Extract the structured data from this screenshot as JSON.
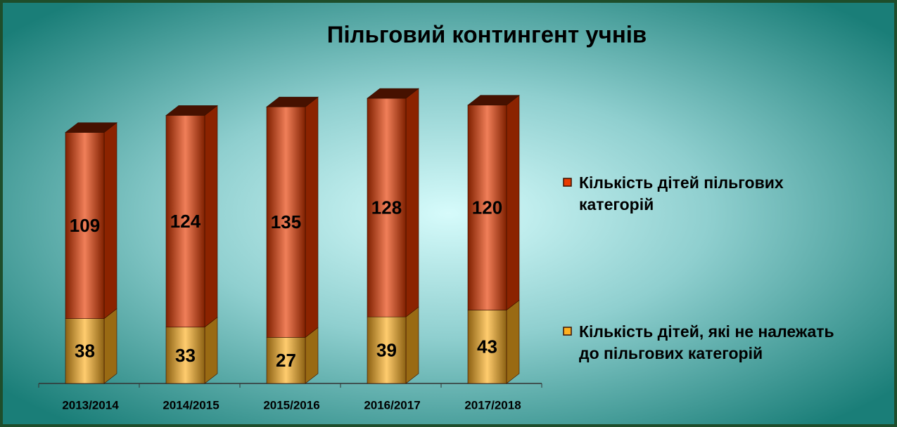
{
  "chart_data": {
    "type": "bar",
    "stacked": true,
    "title": "Пільговий контингент учнів",
    "categories": [
      "2013/2014",
      "2014/2015",
      "2015/2016",
      "2016/2017",
      "2017/2018"
    ],
    "series": [
      {
        "name": "Кількість дітей, які не належать до пільгових категорій",
        "color": "#ffb020",
        "values": [
          38,
          33,
          27,
          39,
          43
        ]
      },
      {
        "name": "Кількість дітей пільгових категорій",
        "color": "#e83a00",
        "values": [
          109,
          124,
          135,
          128,
          120
        ]
      }
    ]
  }
}
